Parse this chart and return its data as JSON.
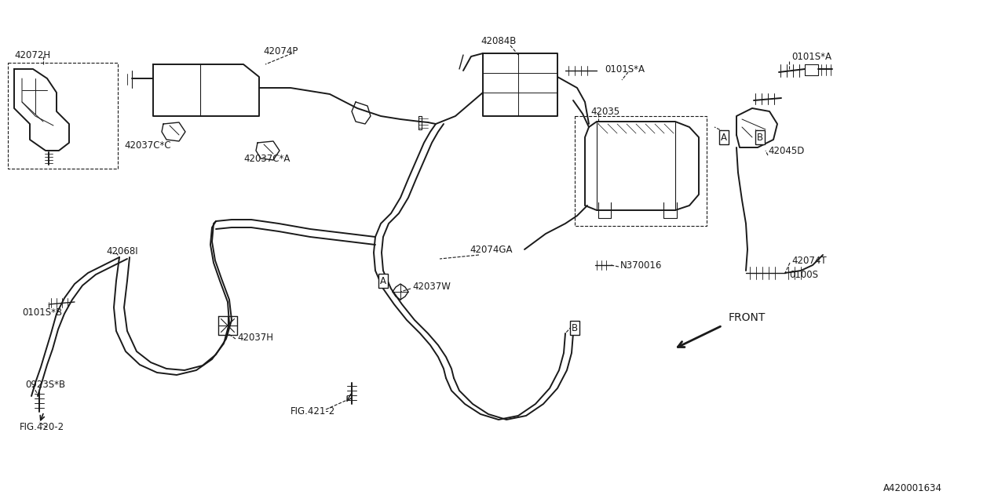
{
  "bg_color": "#ffffff",
  "line_color": "#1a1a1a",
  "diagram_id": "A420001634",
  "figsize": [
    12.8,
    6.4
  ],
  "dpi": 100,
  "xlim": [
    0,
    1280
  ],
  "ylim": [
    0,
    640
  ]
}
